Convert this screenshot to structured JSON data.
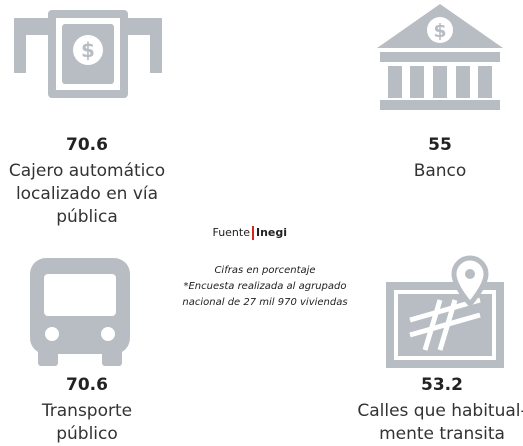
{
  "items": [
    {
      "value": 70.6,
      "label_lines": [
        "Cajero automático",
        "localizado en vía",
        "pública"
      ]
    },
    {
      "value": 55,
      "label_lines": [
        "Banco"
      ]
    },
    {
      "value": 70.6,
      "label_lines": [
        "Transporte",
        "público"
      ]
    },
    {
      "value": 53.2,
      "label_lines": [
        "Calles que habitual-",
        "mente transita"
      ]
    }
  ],
  "source": {
    "prefix": "Fuente",
    "name": "Inegi"
  },
  "notes": [
    "Cifras en porcentaje",
    "*Encuesta realizada al agrupado",
    "nacional de 27 mil 970 viviendas"
  ]
}
